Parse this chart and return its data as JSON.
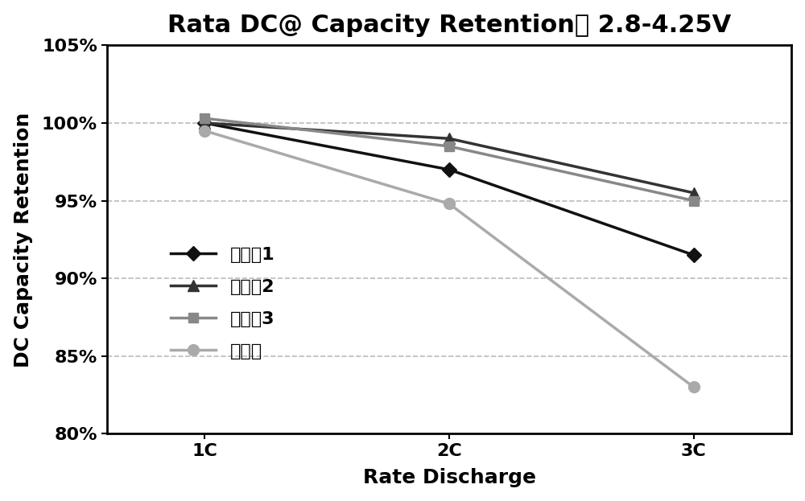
{
  "title": "Rata DC@ Capacity Retention， 2.8-4.25V",
  "xlabel": "Rate Discharge",
  "ylabel": "DC Capacity Retention",
  "x_labels": [
    "1C",
    "2C",
    "3C"
  ],
  "x_values": [
    1,
    2,
    3
  ],
  "series": [
    {
      "name": "实施入1",
      "values": [
        100.0,
        97.0,
        91.5
      ],
      "color": "#111111",
      "marker": "D",
      "markersize": 9,
      "linewidth": 2.5,
      "linestyle": "-"
    },
    {
      "name": "实施入2",
      "values": [
        100.0,
        99.0,
        95.5
      ],
      "color": "#333333",
      "marker": "^",
      "markersize": 10,
      "linewidth": 2.5,
      "linestyle": "-"
    },
    {
      "name": "实施入3",
      "values": [
        100.3,
        98.5,
        95.0
      ],
      "color": "#888888",
      "marker": "s",
      "markersize": 9,
      "linewidth": 2.5,
      "linestyle": "-"
    },
    {
      "name": "对比例",
      "values": [
        99.5,
        94.8,
        83.0
      ],
      "color": "#aaaaaa",
      "marker": "o",
      "markersize": 10,
      "linewidth": 2.5,
      "linestyle": "-"
    }
  ],
  "ylim": [
    80,
    105
  ],
  "yticks": [
    80,
    85,
    90,
    95,
    100,
    105
  ],
  "ytick_labels": [
    "80%",
    "85%",
    "90%",
    "95%",
    "100%",
    "105%"
  ],
  "grid_color": "#bbbbbb",
  "grid_linestyle": "--",
  "grid_linewidth": 1.2,
  "background_color": "#ffffff",
  "title_fontsize": 22,
  "axis_label_fontsize": 18,
  "tick_fontsize": 16,
  "legend_fontsize": 16
}
